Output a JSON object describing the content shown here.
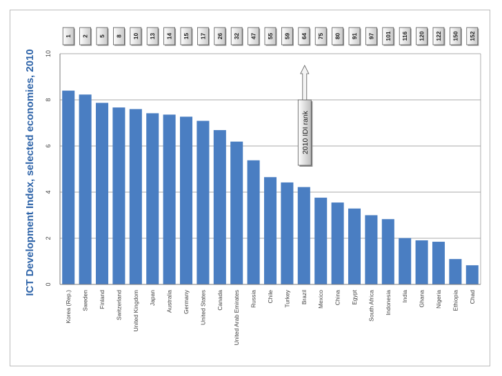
{
  "chart_data": {
    "type": "bar",
    "ylabel": "ICT Development Index, selected economies, 2010",
    "xlabel": "",
    "ylim": [
      0,
      10
    ],
    "yticks": [
      0,
      2,
      4,
      6,
      8,
      10
    ],
    "grid": true,
    "categories": [
      "Korea (Rep.)",
      "Sweden",
      "Finland",
      "Switzerland",
      "United Kingdom",
      "Japan",
      "Australia",
      "Germany",
      "United States",
      "Canada",
      "United Arab Emirates",
      "Russia",
      "Chile",
      "Turkey",
      "Brazil",
      "Mexico",
      "China",
      "Egypt",
      "South Africa",
      "Indonesia",
      "India",
      "Ghana",
      "Nigeria",
      "Ethiopia",
      "Chad"
    ],
    "values": [
      8.4,
      8.23,
      7.87,
      7.67,
      7.6,
      7.42,
      7.36,
      7.27,
      7.09,
      6.69,
      6.19,
      5.38,
      4.65,
      4.42,
      4.22,
      3.76,
      3.55,
      3.29,
      3.0,
      2.83,
      2.01,
      1.91,
      1.85,
      1.1,
      0.83
    ],
    "ranks": [
      "1",
      "2",
      "5",
      "8",
      "10",
      "13",
      "14",
      "15",
      "17",
      "26",
      "32",
      "47",
      "55",
      "59",
      "64",
      "75",
      "80",
      "91",
      "97",
      "101",
      "116",
      "120",
      "122",
      "150",
      "152"
    ],
    "bar_color": "#4a7ec2",
    "annotation": {
      "text": "2010 IDI rank",
      "points_to_category": "Brazil"
    }
  }
}
